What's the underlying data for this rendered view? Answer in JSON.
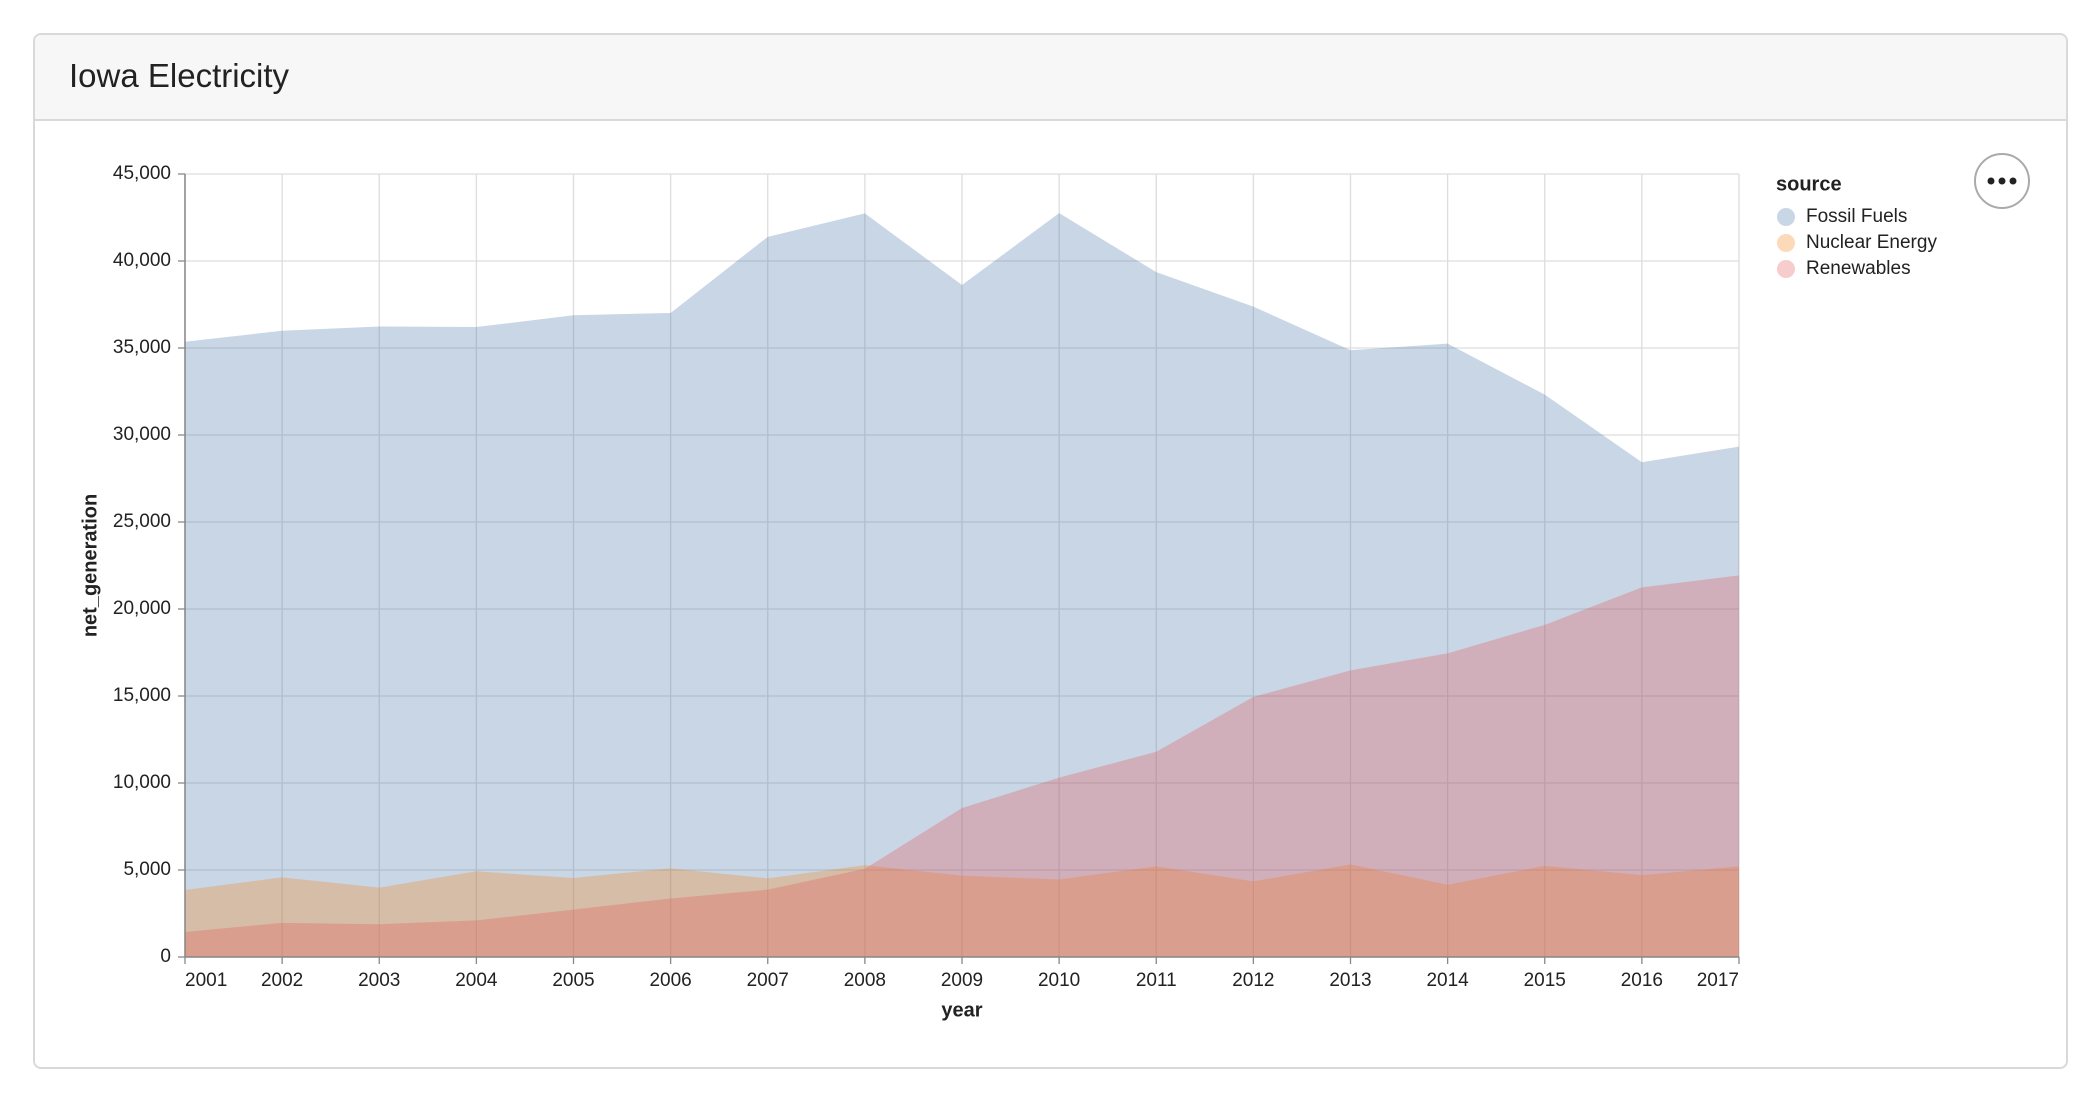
{
  "chart_data": {
    "type": "area",
    "title": "Iowa Electricity",
    "x": [
      2001,
      2002,
      2003,
      2004,
      2005,
      2006,
      2007,
      2008,
      2009,
      2010,
      2011,
      2012,
      2013,
      2014,
      2015,
      2016,
      2017
    ],
    "xlim": [
      2001,
      2017
    ],
    "xlabel": "year",
    "ylabel": "net_generation",
    "ylim": [
      0,
      45000
    ],
    "yticks": [
      0,
      {
        "value": 5000,
        "label": "5,000"
      },
      {
        "value": 10000,
        "label": "10,000"
      },
      {
        "value": 15000,
        "label": "15,000"
      },
      {
        "value": 20000,
        "label": "20,000"
      },
      {
        "value": 25000,
        "label": "25,000"
      },
      {
        "value": 30000,
        "label": "30,000"
      },
      {
        "value": 35000,
        "label": "35,000"
      },
      {
        "value": 40000,
        "label": "40,000"
      },
      {
        "value": 45000,
        "label": "45,000"
      }
    ],
    "grid": true,
    "opacity": 0.3,
    "legend_title": "source",
    "legend_position": "right",
    "series": [
      {
        "name": "Fossil Fuels",
        "color": "#4c78a8",
        "values": [
          35361,
          35991,
          36234,
          36205,
          36883,
          37014,
          41389,
          42734,
          38620,
          42750,
          39361,
          37379,
          34873,
          35250,
          32319,
          28437,
          29329
        ]
      },
      {
        "name": "Nuclear Energy",
        "color": "#f58518",
        "values": [
          3853,
          4574,
          3988,
          4929,
          4538,
          5095,
          4519,
          5282,
          4679,
          4451,
          5215,
          4347,
          5321,
          4152,
          5243,
          4703,
          5214
        ]
      },
      {
        "name": "Renewables",
        "color": "#e45756",
        "values": [
          1437,
          1963,
          1885,
          2102,
          2724,
          3364,
          3870,
          5070,
          8560,
          10308,
          11795,
          14949,
          16476,
          17452,
          19091,
          21241,
          21933
        ]
      }
    ]
  }
}
